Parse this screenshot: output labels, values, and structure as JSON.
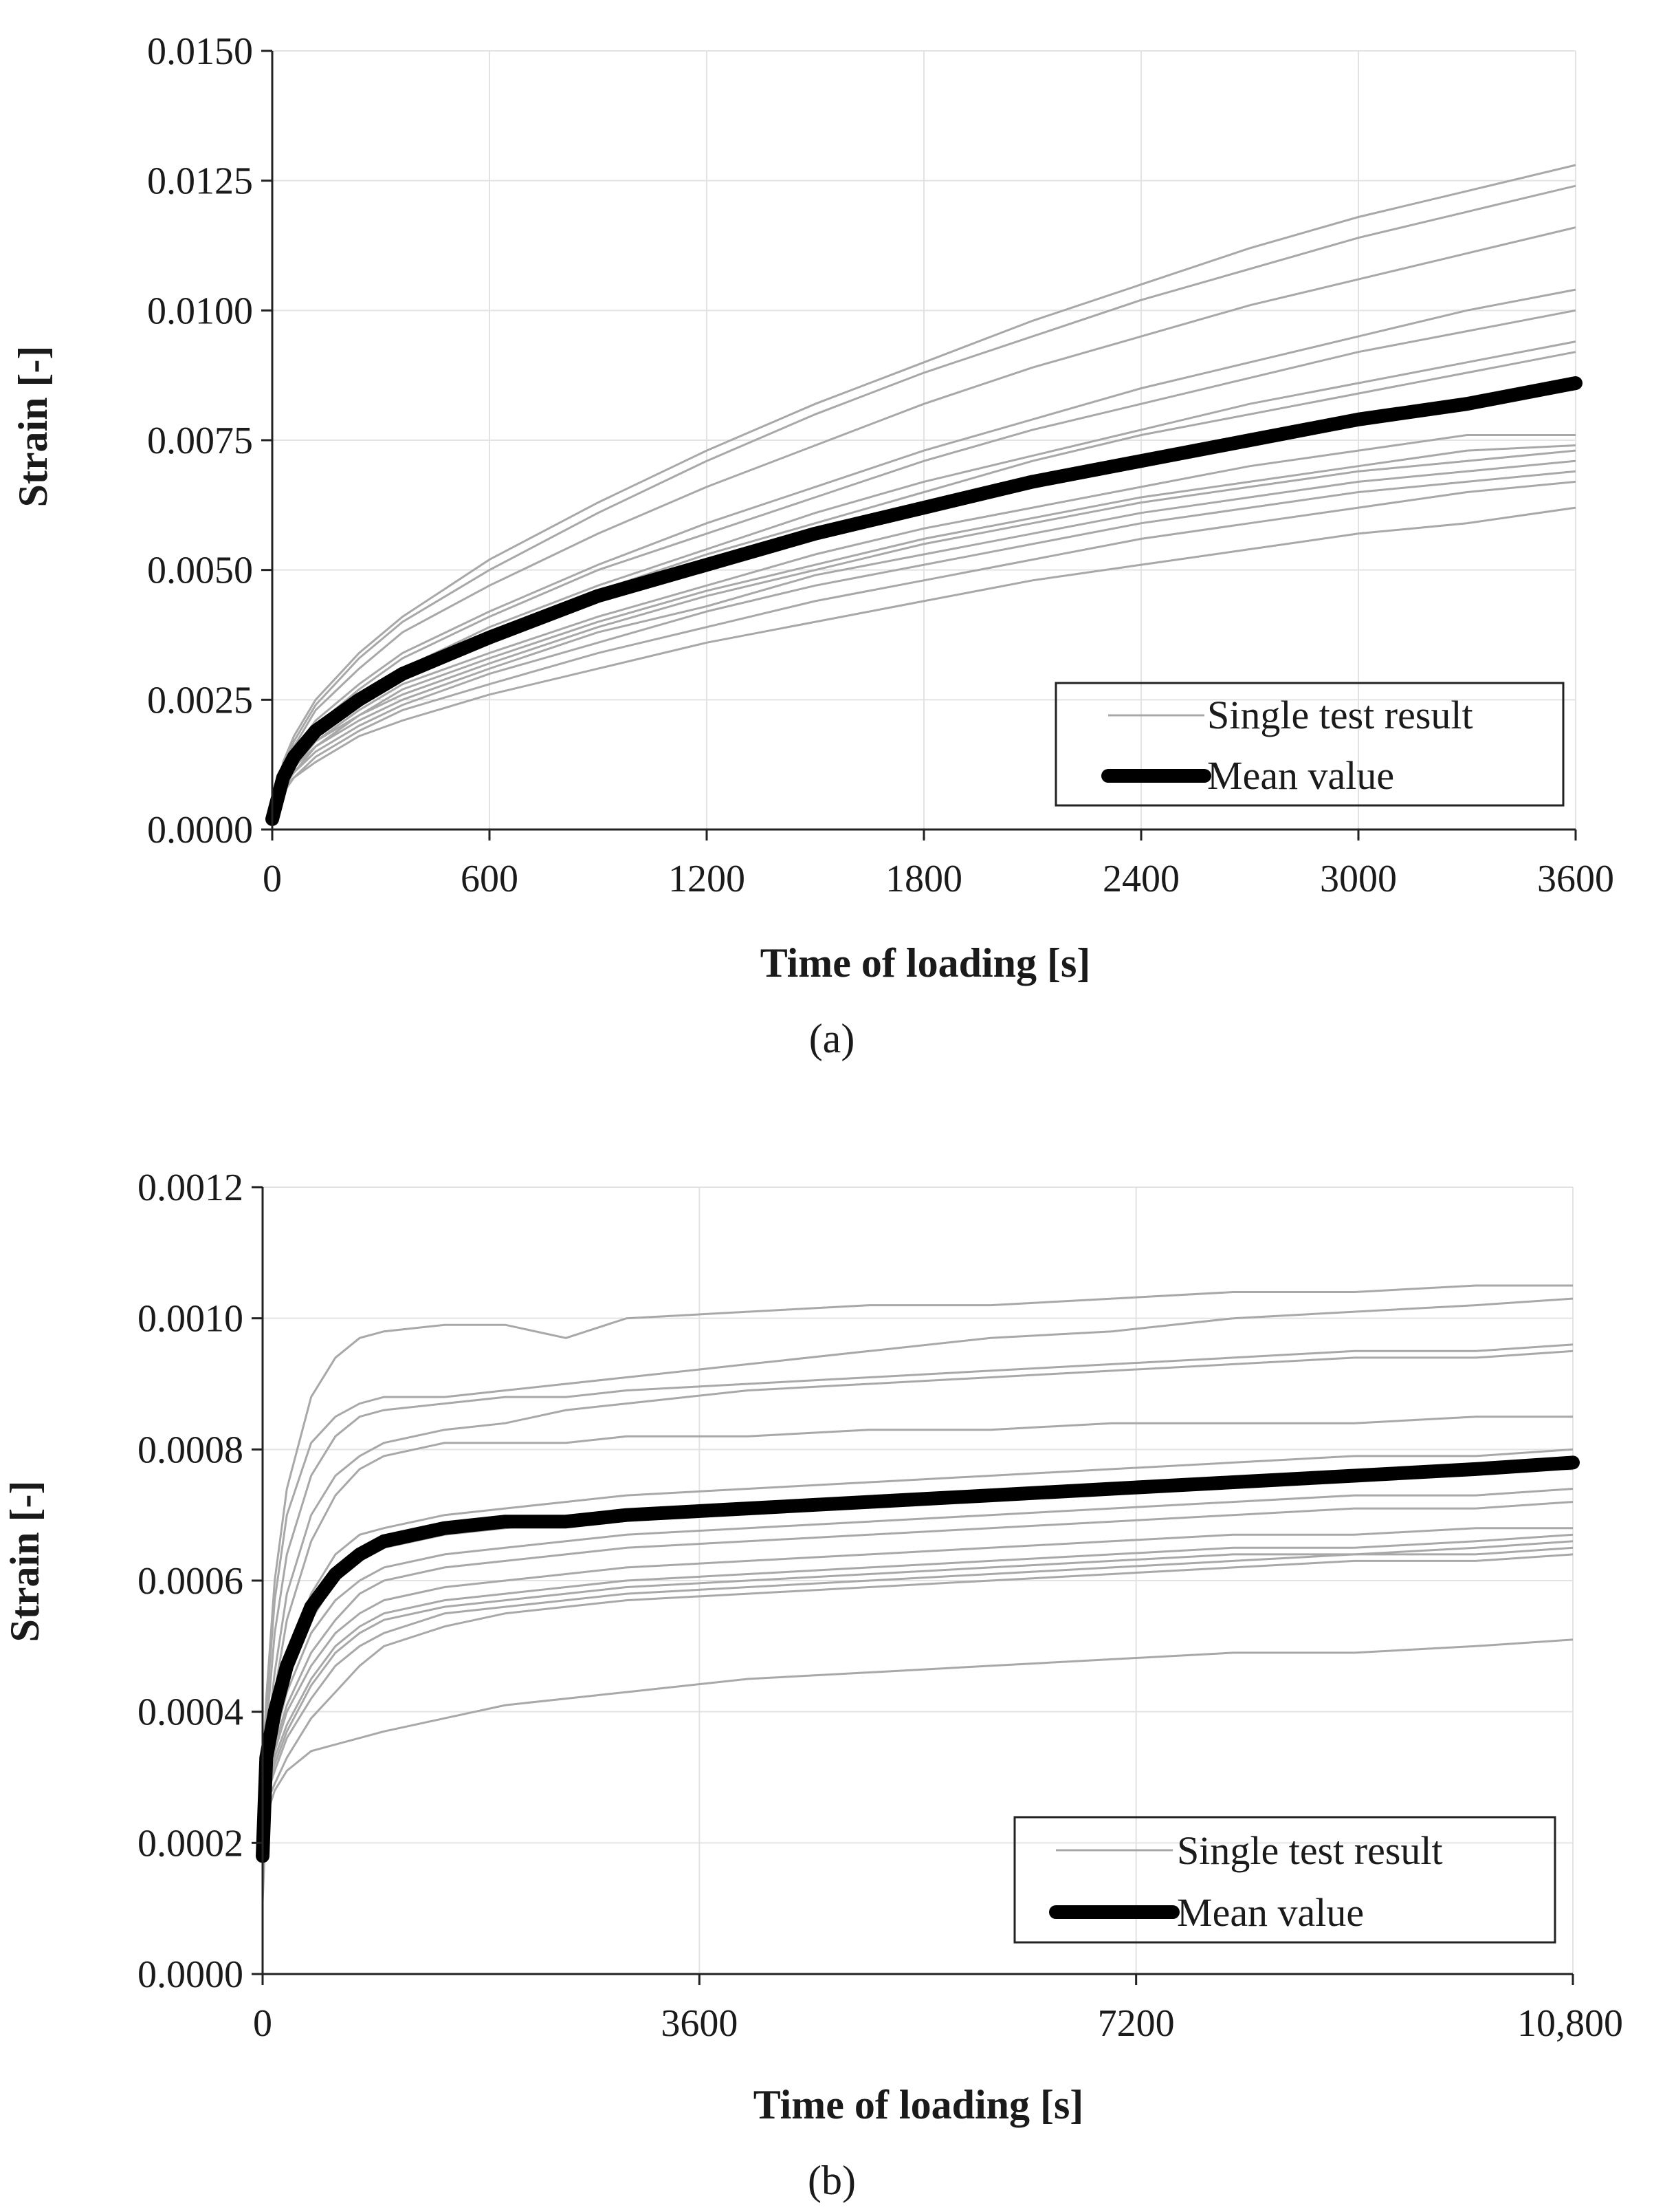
{
  "chart_data": [
    {
      "type": "line",
      "panel_label": "(a)",
      "xlabel": "Time of loading [s]",
      "ylabel": "Strain [-]",
      "xlim": [
        0,
        3600
      ],
      "ylim": [
        0,
        0.015
      ],
      "x_ticks": [
        0,
        600,
        1200,
        1800,
        2400,
        3000,
        3600
      ],
      "x_tick_labels": [
        "0",
        "600",
        "1200",
        "1800",
        "2400",
        "3000",
        "3600"
      ],
      "y_ticks": [
        0,
        0.0025,
        0.005,
        0.0075,
        0.01,
        0.0125,
        0.015
      ],
      "y_tick_labels": [
        "0.0000",
        "0.0025",
        "0.0050",
        "0.0075",
        "0.0100",
        "0.0125",
        "0.0150"
      ],
      "grid": true,
      "legend": {
        "position": "bottom-right",
        "entries": [
          "Single test result",
          "Mean value"
        ]
      },
      "x": [
        0,
        30,
        60,
        120,
        240,
        360,
        600,
        900,
        1200,
        1500,
        1800,
        2100,
        2400,
        2700,
        3000,
        3300,
        3600
      ],
      "series": [
        {
          "name": "Single test result",
          "style": "single",
          "values": [
            0.0002,
            0.0013,
            0.0018,
            0.0025,
            0.0034,
            0.0041,
            0.0052,
            0.0063,
            0.0073,
            0.0082,
            0.009,
            0.0098,
            0.0105,
            0.0112,
            0.0118,
            0.0123,
            0.0128
          ]
        },
        {
          "name": "Single test result",
          "style": "single",
          "values": [
            0.0002,
            0.0012,
            0.0017,
            0.0024,
            0.0033,
            0.004,
            0.005,
            0.0061,
            0.0071,
            0.008,
            0.0088,
            0.0095,
            0.0102,
            0.0108,
            0.0114,
            0.0119,
            0.0124
          ]
        },
        {
          "name": "Single test result",
          "style": "single",
          "values": [
            0.0002,
            0.0012,
            0.0016,
            0.0023,
            0.0031,
            0.0038,
            0.0047,
            0.0057,
            0.0066,
            0.0074,
            0.0082,
            0.0089,
            0.0095,
            0.0101,
            0.0106,
            0.0111,
            0.0116
          ]
        },
        {
          "name": "Single test result",
          "style": "single",
          "values": [
            0.0002,
            0.0011,
            0.0015,
            0.0021,
            0.0028,
            0.0034,
            0.0042,
            0.0051,
            0.0059,
            0.0066,
            0.0073,
            0.0079,
            0.0085,
            0.009,
            0.0095,
            0.01,
            0.0104
          ]
        },
        {
          "name": "Single test result",
          "style": "single",
          "values": [
            0.0002,
            0.001,
            0.0014,
            0.002,
            0.0027,
            0.0033,
            0.0041,
            0.005,
            0.0057,
            0.0064,
            0.0071,
            0.0077,
            0.0082,
            0.0087,
            0.0092,
            0.0096,
            0.01
          ]
        },
        {
          "name": "Single test result",
          "style": "single",
          "values": [
            0.0002,
            0.001,
            0.0014,
            0.0019,
            0.0026,
            0.0031,
            0.0039,
            0.0047,
            0.0054,
            0.0061,
            0.0067,
            0.0072,
            0.0077,
            0.0082,
            0.0086,
            0.009,
            0.0094
          ]
        },
        {
          "name": "Single test result",
          "style": "single",
          "values": [
            0.0002,
            0.001,
            0.0013,
            0.0019,
            0.0025,
            0.003,
            0.0038,
            0.0046,
            0.0053,
            0.0059,
            0.0065,
            0.0071,
            0.0076,
            0.008,
            0.0084,
            0.0088,
            0.0092
          ]
        },
        {
          "name": "Single test result",
          "style": "single",
          "values": [
            0.0002,
            0.0009,
            0.0012,
            0.0017,
            0.0023,
            0.0028,
            0.0034,
            0.0041,
            0.0047,
            0.0053,
            0.0058,
            0.0062,
            0.0066,
            0.007,
            0.0073,
            0.0076,
            0.0076
          ]
        },
        {
          "name": "Single test result",
          "style": "single",
          "values": [
            0.0002,
            0.0009,
            0.0012,
            0.0017,
            0.0022,
            0.0027,
            0.0033,
            0.004,
            0.0046,
            0.0051,
            0.0056,
            0.006,
            0.0064,
            0.0067,
            0.007,
            0.0073,
            0.0074
          ]
        },
        {
          "name": "Single test result",
          "style": "single",
          "values": [
            0.0002,
            0.0009,
            0.0012,
            0.0016,
            0.0022,
            0.0026,
            0.0032,
            0.0039,
            0.0045,
            0.005,
            0.0055,
            0.0059,
            0.0063,
            0.0066,
            0.0069,
            0.0071,
            0.0073
          ]
        },
        {
          "name": "Single test result",
          "style": "single",
          "values": [
            0.0002,
            0.0008,
            0.0011,
            0.0016,
            0.0021,
            0.0025,
            0.0031,
            0.0038,
            0.0043,
            0.0049,
            0.0053,
            0.0057,
            0.0061,
            0.0064,
            0.0067,
            0.0069,
            0.0071
          ]
        },
        {
          "name": "Single test result",
          "style": "single",
          "values": [
            0.0002,
            0.0008,
            0.0011,
            0.0015,
            0.002,
            0.0024,
            0.003,
            0.0036,
            0.0042,
            0.0047,
            0.0051,
            0.0055,
            0.0059,
            0.0062,
            0.0065,
            0.0067,
            0.0069
          ]
        },
        {
          "name": "Single test result",
          "style": "single",
          "values": [
            0.0002,
            0.0008,
            0.001,
            0.0014,
            0.0019,
            0.0023,
            0.0028,
            0.0034,
            0.0039,
            0.0044,
            0.0048,
            0.0052,
            0.0056,
            0.0059,
            0.0062,
            0.0065,
            0.0067
          ]
        },
        {
          "name": "Single test result",
          "style": "single",
          "values": [
            0.0002,
            0.0007,
            0.001,
            0.0013,
            0.0018,
            0.0021,
            0.0026,
            0.0031,
            0.0036,
            0.004,
            0.0044,
            0.0048,
            0.0051,
            0.0054,
            0.0057,
            0.0059,
            0.0062
          ]
        },
        {
          "name": "Mean value",
          "style": "mean",
          "values": [
            0.0002,
            0.001,
            0.0014,
            0.0019,
            0.0025,
            0.003,
            0.0037,
            0.0045,
            0.0051,
            0.0057,
            0.0062,
            0.0067,
            0.0071,
            0.0075,
            0.0079,
            0.0082,
            0.0086
          ]
        }
      ]
    },
    {
      "type": "line",
      "panel_label": "(b)",
      "xlabel": "Time of loading [s]",
      "ylabel": "Strain [-]",
      "xlim": [
        0,
        10800
      ],
      "ylim": [
        0,
        0.0012
      ],
      "x_ticks": [
        0,
        3600,
        7200,
        10800
      ],
      "x_tick_labels": [
        "0",
        "3600",
        "7200",
        "10,800"
      ],
      "y_ticks": [
        0,
        0.0002,
        0.0004,
        0.0006,
        0.0008,
        0.001,
        0.0012
      ],
      "y_tick_labels": [
        "0.0000",
        "0.0002",
        "0.0004",
        "0.0006",
        "0.0008",
        "0.0010",
        "0.0012"
      ],
      "grid": true,
      "legend": {
        "position": "bottom-right",
        "entries": [
          "Single test result",
          "Mean value"
        ]
      },
      "x": [
        0,
        30,
        100,
        200,
        400,
        600,
        800,
        1000,
        1500,
        2000,
        2500,
        3000,
        4000,
        5000,
        6000,
        7000,
        8000,
        9000,
        10000,
        10800
      ],
      "series": [
        {
          "name": "Single test result",
          "style": "single",
          "values": [
            0.0003,
            0.00042,
            0.0006,
            0.00074,
            0.00088,
            0.00094,
            0.00097,
            0.00098,
            0.00099,
            0.00099,
            0.00097,
            0.001,
            0.00101,
            0.00102,
            0.00102,
            0.00103,
            0.00104,
            0.00104,
            0.00105,
            0.00105
          ]
        },
        {
          "name": "Single test result",
          "style": "single",
          "values": [
            0.00029,
            0.0004,
            0.00057,
            0.0007,
            0.00081,
            0.00085,
            0.00087,
            0.00088,
            0.00088,
            0.00089,
            0.0009,
            0.00091,
            0.00093,
            0.00095,
            0.00097,
            0.00098,
            0.001,
            0.00101,
            0.00102,
            0.00103
          ]
        },
        {
          "name": "Single test result",
          "style": "single",
          "values": [
            0.00028,
            0.00037,
            0.00052,
            0.00064,
            0.00076,
            0.00082,
            0.00085,
            0.00086,
            0.00087,
            0.00088,
            0.00088,
            0.00089,
            0.0009,
            0.00091,
            0.00092,
            0.00093,
            0.00094,
            0.00095,
            0.00095,
            0.00096
          ]
        },
        {
          "name": "Single test result",
          "style": "single",
          "values": [
            0.00027,
            0.00034,
            0.00046,
            0.00058,
            0.0007,
            0.00076,
            0.00079,
            0.00081,
            0.00083,
            0.00084,
            0.00086,
            0.00087,
            0.00089,
            0.0009,
            0.00091,
            0.00092,
            0.00093,
            0.00094,
            0.00094,
            0.00095
          ]
        },
        {
          "name": "Single test result",
          "style": "single",
          "values": [
            0.00027,
            0.00033,
            0.00043,
            0.00054,
            0.00066,
            0.00073,
            0.00077,
            0.00079,
            0.00081,
            0.00081,
            0.00081,
            0.00082,
            0.00082,
            0.00083,
            0.00083,
            0.00084,
            0.00084,
            0.00084,
            0.00085,
            0.00085
          ]
        },
        {
          "name": "Single test result",
          "style": "single",
          "values": [
            0.00026,
            0.00031,
            0.00039,
            0.00048,
            0.00058,
            0.00064,
            0.00067,
            0.00068,
            0.0007,
            0.00071,
            0.00072,
            0.00073,
            0.00074,
            0.00075,
            0.00076,
            0.00077,
            0.00078,
            0.00079,
            0.00079,
            0.0008
          ]
        },
        {
          "name": "Single test result",
          "style": "single",
          "values": [
            0.00026,
            0.0003,
            0.00037,
            0.00045,
            0.00054,
            0.0006,
            0.00063,
            0.00065,
            0.00067,
            0.00068,
            0.00069,
            0.0007,
            0.00071,
            0.00072,
            0.00073,
            0.00074,
            0.00075,
            0.00076,
            0.00077,
            0.00077
          ]
        },
        {
          "name": "Single test result",
          "style": "single",
          "values": [
            0.00025,
            0.0003,
            0.00036,
            0.00043,
            0.00052,
            0.00057,
            0.0006,
            0.00062,
            0.00064,
            0.00065,
            0.00066,
            0.00067,
            0.00068,
            0.00069,
            0.0007,
            0.00071,
            0.00072,
            0.00073,
            0.00073,
            0.00074
          ]
        },
        {
          "name": "Single test result",
          "style": "single",
          "values": [
            0.00025,
            0.00029,
            0.00035,
            0.00041,
            0.00049,
            0.00054,
            0.00058,
            0.0006,
            0.00062,
            0.00063,
            0.00064,
            0.00065,
            0.00066,
            0.00067,
            0.00068,
            0.00069,
            0.0007,
            0.00071,
            0.00071,
            0.00072
          ]
        },
        {
          "name": "Single test result",
          "style": "single",
          "values": [
            0.00025,
            0.00029,
            0.00034,
            0.0004,
            0.00047,
            0.00052,
            0.00055,
            0.00057,
            0.00059,
            0.0006,
            0.00061,
            0.00062,
            0.00063,
            0.00064,
            0.00065,
            0.00066,
            0.00067,
            0.00067,
            0.00068,
            0.00068
          ]
        },
        {
          "name": "Single test result",
          "style": "single",
          "values": [
            0.00024,
            0.00028,
            0.00033,
            0.00038,
            0.00045,
            0.0005,
            0.00053,
            0.00055,
            0.00057,
            0.00058,
            0.00059,
            0.0006,
            0.00061,
            0.00062,
            0.00063,
            0.00064,
            0.00065,
            0.00065,
            0.00066,
            0.00067
          ]
        },
        {
          "name": "Single test result",
          "style": "single",
          "values": [
            0.00024,
            0.00028,
            0.00032,
            0.00037,
            0.00044,
            0.00049,
            0.00052,
            0.00054,
            0.00056,
            0.00057,
            0.00058,
            0.00059,
            0.0006,
            0.00061,
            0.00062,
            0.00063,
            0.00064,
            0.00064,
            0.00065,
            0.00066
          ]
        },
        {
          "name": "Single test result",
          "style": "single",
          "values": [
            0.00024,
            0.00027,
            0.00031,
            0.00036,
            0.00042,
            0.00047,
            0.0005,
            0.00052,
            0.00055,
            0.00056,
            0.00057,
            0.00058,
            0.00059,
            0.0006,
            0.00061,
            0.00062,
            0.00063,
            0.00064,
            0.00064,
            0.00065
          ]
        },
        {
          "name": "Single test result",
          "style": "single",
          "values": [
            0.00023,
            0.00026,
            0.00029,
            0.00033,
            0.00039,
            0.00043,
            0.00047,
            0.0005,
            0.00053,
            0.00055,
            0.00056,
            0.00057,
            0.00058,
            0.00059,
            0.0006,
            0.00061,
            0.00062,
            0.00063,
            0.00063,
            0.00064
          ]
        },
        {
          "name": "Single test result",
          "style": "single",
          "values": [
            0.00011,
            0.00024,
            0.00028,
            0.00031,
            0.00034,
            0.00035,
            0.00036,
            0.00037,
            0.00039,
            0.00041,
            0.00042,
            0.00043,
            0.00045,
            0.00046,
            0.00047,
            0.00048,
            0.00049,
            0.00049,
            0.0005,
            0.00051
          ]
        },
        {
          "name": "Mean value",
          "style": "mean",
          "values": [
            0.00018,
            0.00033,
            0.0004,
            0.00047,
            0.00056,
            0.00061,
            0.00064,
            0.00066,
            0.00068,
            0.00069,
            0.00069,
            0.0007,
            0.00071,
            0.00072,
            0.00073,
            0.00074,
            0.00075,
            0.00076,
            0.00077,
            0.00078
          ]
        }
      ]
    }
  ]
}
